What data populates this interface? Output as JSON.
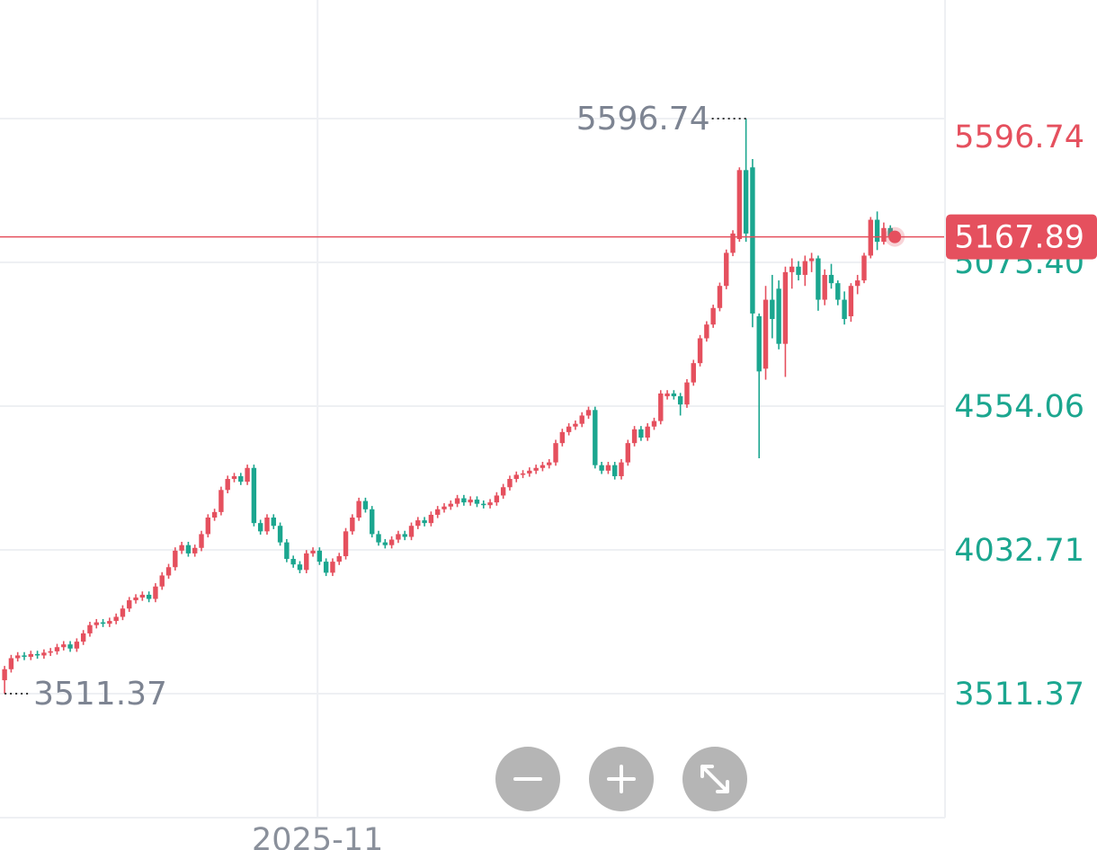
{
  "chart_data": {
    "type": "candlestick",
    "up_color": "#e5505e",
    "down_color": "#1ba68f",
    "tick_color": "#1ba68f",
    "grid": true,
    "xlim": [
      -0.7,
      143.2
    ],
    "ylim": [
      3061.7,
      6026.9
    ],
    "xticks": [
      {
        "value": 47.7,
        "label": "2025-11"
      }
    ],
    "yticks": [
      3511.37,
      4032.71,
      4554.06,
      {
        "value": 5075.4,
        "label": "5075.40"
      }
    ],
    "max": {
      "value": 5596.74,
      "color": "#e5505e"
    },
    "min": {
      "value": 3511.37
    },
    "last": {
      "value": 5167.89,
      "color": "#e5505e"
    },
    "open": [
      3560,
      3600,
      3640,
      3650,
      3645,
      3655,
      3650,
      3660,
      3665,
      3680,
      3690,
      3675,
      3700,
      3730,
      3760,
      3770,
      3765,
      3775,
      3790,
      3820,
      3850,
      3860,
      3870,
      3855,
      3900,
      3940,
      3970,
      4030,
      4050,
      4020,
      4040,
      4090,
      4150,
      4170,
      4250,
      4290,
      4300,
      4280,
      4330,
      4130,
      4100,
      4150,
      4120,
      4060,
      4000,
      3980,
      3960,
      4020,
      4030,
      3990,
      3950,
      3990,
      4010,
      4100,
      4150,
      4210,
      4180,
      4090,
      4060,
      4050,
      4070,
      4090,
      4080,
      4120,
      4140,
      4130,
      4160,
      4180,
      4190,
      4200,
      4220,
      4205,
      4215,
      4200,
      4195,
      4205,
      4230,
      4260,
      4290,
      4305,
      4310,
      4320,
      4330,
      4340,
      4350,
      4420,
      4460,
      4480,
      4490,
      4520,
      4540,
      4340,
      4320,
      4340,
      4300,
      4350,
      4420,
      4470,
      4440,
      4480,
      4500,
      4590,
      4600,
      4590,
      4560,
      4640,
      4710,
      4800,
      4850,
      4910,
      4990,
      5110,
      5160,
      5410,
      5420,
      4880,
      4690,
      4940,
      4980,
      4780,
      5040,
      5060,
      5030,
      5080,
      5090,
      4940,
      5030,
      5000,
      4940,
      4880,
      4990,
      5010,
      5100,
      5230,
      5150,
      5200
    ],
    "high": [
      3612,
      3652,
      3662,
      3662,
      3667,
      3667,
      3672,
      3677,
      3692,
      3702,
      3702,
      3712,
      3742,
      3772,
      3782,
      3782,
      3787,
      3802,
      3832,
      3862,
      3872,
      3882,
      3882,
      3912,
      3952,
      3982,
      4042,
      4062,
      4062,
      4052,
      4102,
      4162,
      4182,
      4262,
      4302,
      4312,
      4312,
      4342,
      4342,
      4142,
      4162,
      4162,
      4132,
      4072,
      4012,
      3992,
      4032,
      4042,
      4042,
      4002,
      4002,
      4022,
      4112,
      4162,
      4222,
      4222,
      4192,
      4102,
      4072,
      4082,
      4102,
      4102,
      4132,
      4152,
      4152,
      4172,
      4192,
      4202,
      4212,
      4232,
      4232,
      4227,
      4227,
      4212,
      4217,
      4242,
      4272,
      4302,
      4317,
      4322,
      4332,
      4342,
      4352,
      4362,
      4432,
      4472,
      4492,
      4502,
      4532,
      4552,
      4552,
      4352,
      4352,
      4352,
      4362,
      4432,
      4482,
      4482,
      4492,
      4512,
      4612,
      4612,
      4612,
      4602,
      4652,
      4722,
      4812,
      4862,
      4922,
      5002,
      5122,
      5192,
      5420,
      5596.74,
      5450,
      4890,
      4990,
      5030,
      5010,
      5060,
      5090,
      5080,
      5100,
      5110,
      5100,
      5050,
      5070,
      5010,
      4970,
      5000,
      5030,
      5110,
      5240,
      5260,
      5220,
      5210
    ],
    "low": [
      3511.37,
      3588,
      3628,
      3633,
      3633,
      3638,
      3638,
      3648,
      3653,
      3668,
      3663,
      3663,
      3688,
      3718,
      3748,
      3753,
      3753,
      3763,
      3778,
      3808,
      3838,
      3848,
      3843,
      3843,
      3888,
      3928,
      3958,
      4018,
      4008,
      4008,
      4028,
      4078,
      4138,
      4158,
      4238,
      4278,
      4268,
      4268,
      4118,
      4088,
      4088,
      4108,
      4048,
      3988,
      3968,
      3948,
      3948,
      4008,
      3978,
      3938,
      3938,
      3978,
      3998,
      4088,
      4138,
      4168,
      4078,
      4048,
      4038,
      4038,
      4058,
      4068,
      4068,
      4108,
      4118,
      4118,
      4148,
      4168,
      4178,
      4188,
      4193,
      4193,
      4188,
      4183,
      4183,
      4193,
      4218,
      4248,
      4278,
      4293,
      4298,
      4308,
      4318,
      4328,
      4338,
      4408,
      4448,
      4468,
      4478,
      4508,
      4328,
      4308,
      4308,
      4288,
      4288,
      4338,
      4408,
      4428,
      4428,
      4468,
      4488,
      4578,
      4578,
      4520,
      4548,
      4628,
      4698,
      4788,
      4838,
      4898,
      4978,
      5098,
      5150,
      5150,
      4840,
      4365,
      4650,
      4800,
      4760,
      4660,
      4980,
      5010,
      4990,
      5040,
      4900,
      4920,
      4980,
      4920,
      4850,
      4860,
      4960,
      5000,
      5090,
      5120,
      5140,
      5160
    ],
    "close": [
      3600,
      3640,
      3650,
      3645,
      3655,
      3650,
      3660,
      3665,
      3680,
      3690,
      3675,
      3700,
      3730,
      3760,
      3770,
      3765,
      3775,
      3790,
      3820,
      3850,
      3860,
      3870,
      3855,
      3900,
      3940,
      3970,
      4030,
      4050,
      4020,
      4040,
      4090,
      4150,
      4170,
      4250,
      4290,
      4300,
      4280,
      4330,
      4130,
      4100,
      4150,
      4120,
      4060,
      4000,
      3980,
      3960,
      4020,
      4030,
      3990,
      3950,
      3990,
      4010,
      4100,
      4150,
      4210,
      4180,
      4090,
      4060,
      4050,
      4070,
      4090,
      4080,
      4120,
      4140,
      4130,
      4160,
      4180,
      4190,
      4200,
      4220,
      4205,
      4215,
      4200,
      4195,
      4205,
      4230,
      4260,
      4290,
      4305,
      4310,
      4320,
      4330,
      4340,
      4350,
      4420,
      4460,
      4480,
      4490,
      4520,
      4540,
      4340,
      4320,
      4340,
      4300,
      4350,
      4420,
      4470,
      4440,
      4480,
      4500,
      4600,
      4600,
      4590,
      4560,
      4640,
      4710,
      4800,
      4850,
      4910,
      4990,
      5110,
      5180,
      5410,
      5180,
      4890,
      4680,
      4940,
      4870,
      4780,
      5040,
      5060,
      5030,
      5080,
      5090,
      4940,
      5030,
      5000,
      4940,
      4870,
      4990,
      5010,
      5100,
      5230,
      5150,
      5200,
      5167.89
    ]
  }
}
